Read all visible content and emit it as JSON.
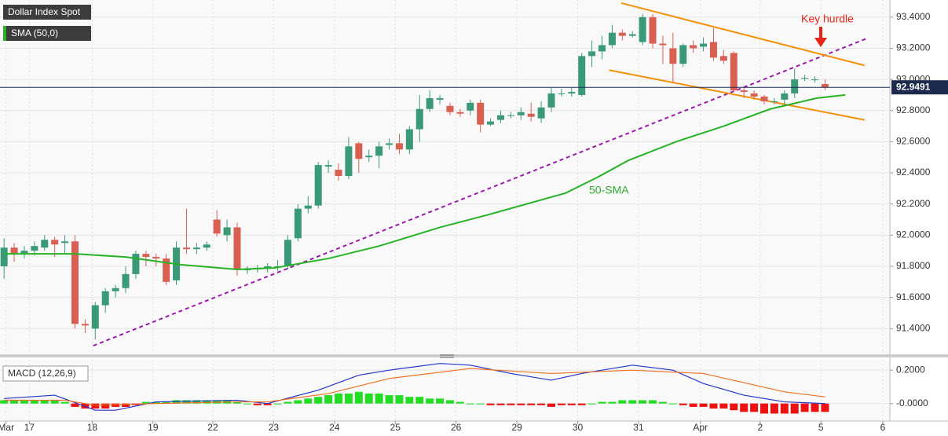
{
  "chart_data": [
    {
      "type": "candlestick",
      "title": "Dollar Index Spot",
      "up_color": "#3a9a78",
      "down_color": "#d85f52",
      "open": [
        91.8,
        91.92,
        91.88,
        91.9,
        91.92,
        91.97,
        91.95,
        91.96,
        91.43,
        91.4,
        91.55,
        91.64,
        91.66,
        91.75,
        91.88,
        91.86,
        91.85,
        91.71,
        91.92,
        91.91,
        91.92,
        92.1,
        92.0,
        92.05,
        91.78,
        91.78,
        91.79,
        91.8,
        91.8,
        91.98,
        92.17,
        92.19,
        92.44,
        92.42,
        92.38,
        92.59,
        92.5,
        92.51,
        92.58,
        92.59,
        92.55,
        92.68,
        92.81,
        92.87,
        92.83,
        92.79,
        92.8,
        92.85,
        92.71,
        92.74,
        92.77,
        92.77,
        92.78,
        92.75,
        92.82,
        92.91,
        92.91,
        92.9,
        93.15,
        93.18,
        93.22,
        93.3,
        93.28,
        93.24,
        93.4,
        93.23,
        93.2,
        93.1,
        93.22,
        93.21,
        93.24,
        93.15,
        93.17,
        92.93,
        92.91,
        92.89,
        92.86,
        92.87,
        92.91,
        93.01,
        93.0,
        92.97
      ],
      "high": [
        91.98,
        91.95,
        91.93,
        91.96,
        92.0,
        91.99,
        92.0,
        92.0,
        91.46,
        91.57,
        91.66,
        91.68,
        91.8,
        91.9,
        91.9,
        91.88,
        91.88,
        91.96,
        92.17,
        91.95,
        91.96,
        92.16,
        92.1,
        92.08,
        91.8,
        91.81,
        91.82,
        91.84,
        92.0,
        92.2,
        92.25,
        92.47,
        92.48,
        92.46,
        92.63,
        92.6,
        92.55,
        92.6,
        92.62,
        92.65,
        92.7,
        92.9,
        92.93,
        92.9,
        92.85,
        92.81,
        92.87,
        92.87,
        92.75,
        92.8,
        92.79,
        92.82,
        92.85,
        92.86,
        92.95,
        92.94,
        92.95,
        93.17,
        93.25,
        93.28,
        93.35,
        93.32,
        93.31,
        93.42,
        93.42,
        93.28,
        93.3,
        93.23,
        93.25,
        93.27,
        93.33,
        93.19,
        93.18,
        92.95,
        92.93,
        92.9,
        92.88,
        92.93,
        93.07,
        93.03,
        93.02,
        93.0
      ],
      "low": [
        91.72,
        91.83,
        91.85,
        91.87,
        91.9,
        91.86,
        91.88,
        91.4,
        91.37,
        91.33,
        91.5,
        91.6,
        91.63,
        91.72,
        91.8,
        91.8,
        91.68,
        91.68,
        91.88,
        91.88,
        91.9,
        91.99,
        91.96,
        91.74,
        91.75,
        91.76,
        91.76,
        91.77,
        91.78,
        91.96,
        92.14,
        92.17,
        92.4,
        92.35,
        92.36,
        92.4,
        92.47,
        92.43,
        92.55,
        92.52,
        92.52,
        92.6,
        92.79,
        92.84,
        92.77,
        92.76,
        92.77,
        92.66,
        92.7,
        92.72,
        92.75,
        92.74,
        92.73,
        92.72,
        92.79,
        92.89,
        92.89,
        92.89,
        93.08,
        93.13,
        93.2,
        93.25,
        93.27,
        93.22,
        93.2,
        93.1,
        92.98,
        93.08,
        93.17,
        93.18,
        93.12,
        93.1,
        92.92,
        92.88,
        92.87,
        92.84,
        92.84,
        92.83,
        92.88,
        92.99,
        92.98,
        92.93
      ],
      "close": [
        91.92,
        91.88,
        91.9,
        91.93,
        91.97,
        91.94,
        91.96,
        91.43,
        91.42,
        91.55,
        91.64,
        91.66,
        91.75,
        91.88,
        91.86,
        91.85,
        91.7,
        91.92,
        91.91,
        91.92,
        91.94,
        92.01,
        92.05,
        91.78,
        91.78,
        91.79,
        91.8,
        91.8,
        91.97,
        92.17,
        92.19,
        92.45,
        92.45,
        92.38,
        92.57,
        92.49,
        92.51,
        92.57,
        92.59,
        92.55,
        92.68,
        92.81,
        92.88,
        92.88,
        92.79,
        92.78,
        92.85,
        92.71,
        92.73,
        92.77,
        92.77,
        92.79,
        92.76,
        92.82,
        92.91,
        92.91,
        92.92,
        93.15,
        93.18,
        93.22,
        93.3,
        93.28,
        93.29,
        93.4,
        93.23,
        93.22,
        93.1,
        93.22,
        93.2,
        93.23,
        93.14,
        93.12,
        92.93,
        92.92,
        92.89,
        92.86,
        92.86,
        92.91,
        93.0,
        93.01,
        93.0,
        92.95
      ],
      "overlays": [
        {
          "name": "SMA (50,0)",
          "color": "#27b327",
          "x": [
            0,
            7,
            12,
            17.5,
            23,
            26.7,
            32,
            37,
            43,
            47.7,
            55.4,
            58.5,
            61.6,
            66.3,
            71,
            75.6,
            80.2,
            83
          ],
          "values": [
            91.88,
            91.88,
            91.86,
            91.81,
            91.78,
            91.79,
            91.85,
            91.93,
            92.05,
            92.13,
            92.27,
            92.37,
            92.48,
            92.6,
            92.7,
            92.81,
            92.88,
            92.9
          ]
        }
      ],
      "trendlines": [
        {
          "color": "#9a1aa8",
          "dashed": true,
          "x": [
            8.8,
            85
          ],
          "values": [
            91.29,
            93.26
          ]
        },
        {
          "color": "#f2920c",
          "dashed": false,
          "x": [
            60.9,
            84.9
          ],
          "values": [
            93.49,
            93.09
          ]
        },
        {
          "color": "#f2920c",
          "dashed": false,
          "x": [
            59.7,
            84.9
          ],
          "values": [
            93.06,
            92.74
          ]
        }
      ],
      "last_price": 92.9491,
      "annotations": [
        "Key hurdle",
        "50-SMA"
      ],
      "xlim": [
        -0.4,
        87.4
      ],
      "xticks": [
        {
          "value": 0.2,
          "label": "Mar"
        },
        {
          "value": 2.5,
          "label": "17"
        },
        {
          "value": 8.7,
          "label": "18"
        },
        {
          "value": 14.7,
          "label": "19"
        },
        {
          "value": 20.6,
          "label": "22"
        },
        {
          "value": 26.6,
          "label": "23"
        },
        {
          "value": 32.6,
          "label": "24"
        },
        {
          "value": 38.6,
          "label": "25"
        },
        {
          "value": 44.6,
          "label": "26"
        },
        {
          "value": 50.6,
          "label": "29"
        },
        {
          "value": 56.6,
          "label": "30"
        },
        {
          "value": 62.6,
          "label": "31"
        },
        {
          "value": 68.7,
          "label": "Apr"
        },
        {
          "value": 74.6,
          "label": "2"
        },
        {
          "value": 80.6,
          "label": "5"
        },
        {
          "value": 86.7,
          "label": "6"
        }
      ],
      "ylim": [
        91.24,
        93.51
      ],
      "yticks": [
        {
          "value": 93.4,
          "label": "93.4000"
        },
        {
          "value": 93.2,
          "label": "93.2000"
        },
        {
          "value": 93.0,
          "label": "93.0000"
        },
        {
          "value": 92.8,
          "label": "92.8000"
        },
        {
          "value": 92.6,
          "label": "92.6000"
        },
        {
          "value": 92.4,
          "label": "92.4000"
        },
        {
          "value": 92.2,
          "label": "92.2000"
        },
        {
          "value": 92.0,
          "label": "92.0000"
        },
        {
          "value": 91.8,
          "label": "91.8000"
        },
        {
          "value": 91.6,
          "label": "91.6000"
        },
        {
          "value": 91.4,
          "label": "91.4000"
        }
      ],
      "grid": true
    },
    {
      "type": "macd",
      "title": "MACD (12,26,9)",
      "histogram": [
        0.02,
        0.02,
        0.02,
        0.02,
        0.02,
        0.02,
        0.01,
        -0.02,
        -0.03,
        -0.03,
        -0.03,
        -0.02,
        -0.02,
        -0.01,
        0.01,
        0.01,
        0.01,
        0.02,
        0.02,
        0.02,
        0.02,
        0.02,
        0.02,
        0.01,
        0.0,
        -0.01,
        -0.01,
        0.0,
        0.01,
        0.02,
        0.03,
        0.04,
        0.05,
        0.06,
        0.06,
        0.07,
        0.06,
        0.06,
        0.05,
        0.05,
        0.04,
        0.04,
        0.03,
        0.03,
        0.02,
        0.01,
        0.0,
        0.0,
        -0.01,
        -0.01,
        -0.01,
        -0.01,
        -0.01,
        -0.01,
        -0.02,
        -0.01,
        -0.01,
        -0.01,
        0.0,
        0.01,
        0.01,
        0.02,
        0.02,
        0.02,
        0.02,
        0.01,
        0.0,
        -0.01,
        -0.02,
        -0.02,
        -0.03,
        -0.03,
        -0.04,
        -0.05,
        -0.05,
        -0.06,
        -0.06,
        -0.06,
        -0.06,
        -0.05,
        -0.05,
        -0.05
      ],
      "up_color": "#22dd22",
      "down_color": "#ee1111",
      "series": [
        {
          "color": "#2233cc",
          "x": [
            0,
            5,
            9,
            11,
            15,
            23,
            26,
            31,
            35,
            38,
            43,
            46,
            50,
            54,
            57,
            62,
            66,
            69,
            73,
            77,
            81
          ],
          "values": [
            0.03,
            0.05,
            -0.04,
            -0.04,
            0.01,
            0.02,
            0.0,
            0.08,
            0.17,
            0.2,
            0.24,
            0.23,
            0.18,
            0.14,
            0.18,
            0.23,
            0.2,
            0.12,
            0.05,
            0.01,
            0.0
          ]
        },
        {
          "color": "#f07020",
          "x": [
            0,
            6,
            9,
            15,
            23,
            26,
            32,
            38,
            46,
            54,
            62,
            69,
            77,
            81
          ],
          "values": [
            0.02,
            0.02,
            -0.01,
            0.0,
            0.01,
            0.01,
            0.06,
            0.15,
            0.21,
            0.18,
            0.2,
            0.18,
            0.07,
            0.04
          ]
        }
      ],
      "ylim": [
        -0.105,
        0.262
      ],
      "yticks": [
        {
          "value": 0.2,
          "label": "0.2000"
        },
        {
          "value": 0,
          "label": "-0.0000"
        }
      ]
    }
  ]
}
